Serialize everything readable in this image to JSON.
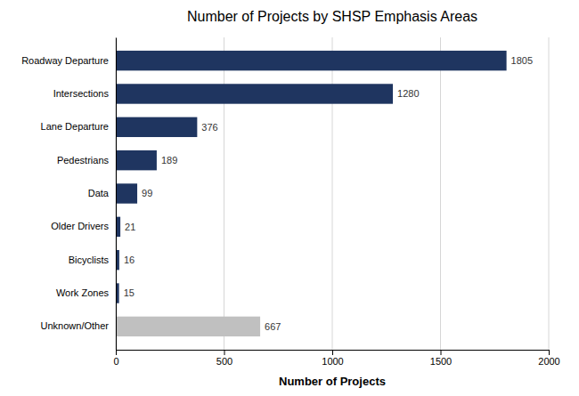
{
  "chart_data": {
    "type": "bar",
    "orientation": "horizontal",
    "title": "Number of Projects by SHSP Emphasis Areas",
    "xlabel": "Number of Projects",
    "categories": [
      "Roadway Departure",
      "Intersections",
      "Lane Departure",
      "Pedestrians",
      "Data",
      "Older Drivers",
      "Bicyclists",
      "Work Zones",
      "Unknown/Other"
    ],
    "values": [
      1805,
      1280,
      376,
      189,
      99,
      21,
      16,
      15,
      667
    ],
    "colors": [
      "#1f3560",
      "#1f3560",
      "#1f3560",
      "#1f3560",
      "#1f3560",
      "#1f3560",
      "#1f3560",
      "#1f3560",
      "#c0c0c0"
    ],
    "xlim": [
      0,
      2000
    ],
    "xticks": [
      0,
      500,
      1000,
      1500,
      2000
    ],
    "grid": true,
    "data_labels": true
  }
}
